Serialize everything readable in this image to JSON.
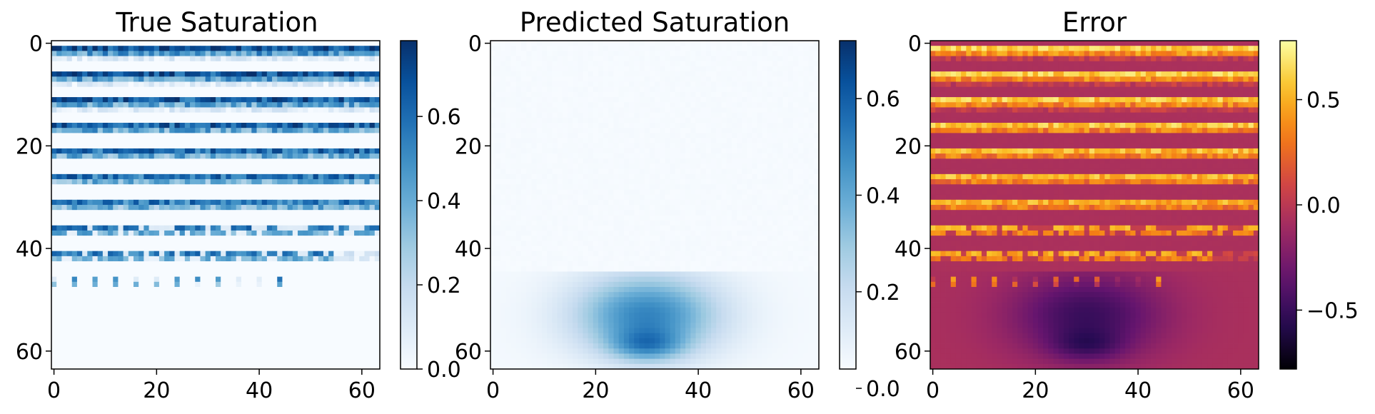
{
  "chart_data": [
    {
      "type": "heatmap",
      "title": "True Saturation",
      "colormap": "Blues",
      "grid_size": [
        64,
        64
      ],
      "x_ticks": [
        "0",
        "20",
        "40",
        "60"
      ],
      "y_ticks": [
        "0",
        "20",
        "40",
        "60"
      ],
      "xlim": [
        -0.5,
        63.5
      ],
      "ylim": [
        63.5,
        -0.5
      ],
      "colorbar": {
        "range": [
          0.0,
          0.78
        ],
        "ticks": [
          {
            "value": 0.0,
            "label": "0.0"
          },
          {
            "value": 0.2,
            "label": "0.2"
          },
          {
            "value": 0.4,
            "label": "0.4"
          },
          {
            "value": 0.6,
            "label": "0.6"
          }
        ]
      },
      "pattern": "horizontal saturated layers every ~5 rows from row 1 to row 46, intensity fading with depth; zero elsewhere"
    },
    {
      "type": "heatmap",
      "title": "Predicted Saturation",
      "colormap": "Blues",
      "grid_size": [
        64,
        64
      ],
      "x_ticks": [
        "0",
        "20",
        "40",
        "60"
      ],
      "y_ticks": [
        "0",
        "20",
        "40",
        "60"
      ],
      "xlim": [
        -0.5,
        63.5
      ],
      "ylim": [
        63.5,
        -0.5
      ],
      "colorbar": {
        "range": [
          0.04,
          0.72
        ],
        "ticks": [
          {
            "value": 0.0,
            "label": "0.0"
          },
          {
            "value": 0.2,
            "label": "0.2"
          },
          {
            "value": 0.4,
            "label": "0.4"
          },
          {
            "value": 0.6,
            "label": "0.6"
          }
        ]
      },
      "pattern": "smooth bowl-shaped plume centered near x=30, y=50-60, max ~0.7 at (30, 59)"
    },
    {
      "type": "heatmap",
      "title": "Error",
      "colormap": "inferno",
      "grid_size": [
        64,
        64
      ],
      "x_ticks": [
        "0",
        "20",
        "40",
        "60"
      ],
      "y_ticks": [
        "0",
        "20",
        "40",
        "60"
      ],
      "xlim": [
        -0.5,
        63.5
      ],
      "ylim": [
        63.5,
        -0.5
      ],
      "colorbar": {
        "range": [
          -0.78,
          0.78
        ],
        "ticks": [
          {
            "value": 0.5,
            "label": "0.5"
          },
          {
            "value": 0.0,
            "label": "0.0"
          },
          {
            "value": -0.5,
            "label": "−0.5"
          }
        ]
      },
      "pattern": "true minus predicted: bright positive layers in rows 1-46, dark negative plume near x=30, y=50-60"
    }
  ]
}
